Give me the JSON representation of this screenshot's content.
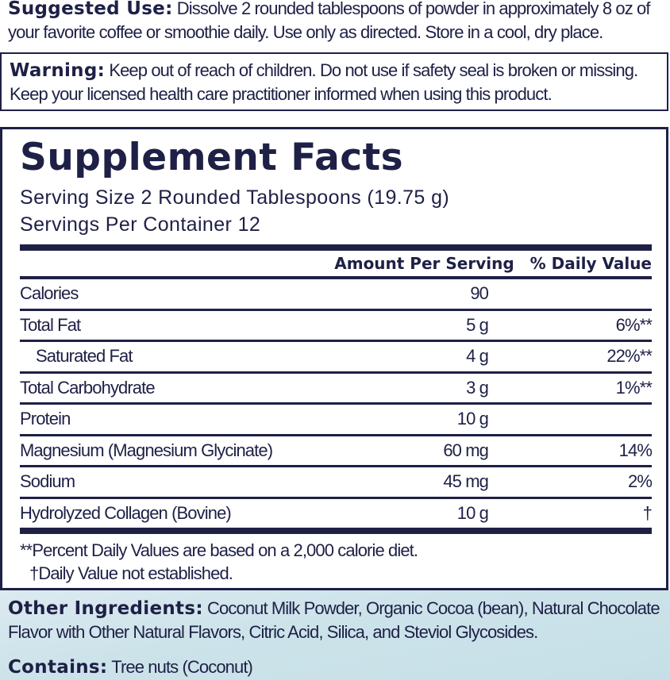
{
  "suggested_use": {
    "label": "Suggested Use:",
    "text": " Dissolve 2 rounded tablespoons of powder in approximately 8 oz of your favorite coffee or smoothie daily. Use only as directed. Store in a cool, dry place."
  },
  "warning": {
    "label": "Warning:",
    "text": " Keep out of reach of children. Do not use if safety seal is broken or missing. Keep your licensed health care practitioner informed when using this product."
  },
  "facts": {
    "title": "Supplement Facts",
    "serving_size": "Serving Size 2 Rounded Tablespoons (19.75 g)",
    "servings_per_container": "Servings Per Container 12",
    "header_amount": "Amount Per Serving",
    "header_dv": "% Daily Value",
    "rows": [
      {
        "name": "Calories",
        "amount": "90",
        "dv": ""
      },
      {
        "name": "Total Fat",
        "amount": "5 g",
        "dv": "6%**"
      },
      {
        "name": "Saturated Fat",
        "amount": "4 g",
        "dv": "22%**"
      },
      {
        "name": "Total Carbohydrate",
        "amount": "3 g",
        "dv": "1%**"
      },
      {
        "name": "Protein",
        "amount": "10 g",
        "dv": ""
      },
      {
        "name": "Magnesium (Magnesium Glycinate)",
        "amount": "60 mg",
        "dv": "14%"
      },
      {
        "name": "Sodium",
        "amount": "45 mg",
        "dv": "2%"
      },
      {
        "name": "Hydrolyzed Collagen (Bovine)",
        "amount": "10 g",
        "dv": "†"
      }
    ],
    "footnote1": "**Percent Daily Values are based on a 2,000 calorie diet.",
    "footnote2": "†Daily Value not established."
  },
  "other_ingredients": {
    "label": "Other Ingredients:",
    "text": " Coconut Milk Powder, Organic Cocoa (bean), Natural Chocolate Flavor with Other Natural Flavors, Citric Acid, Silica, and Steviol Glycosides."
  },
  "contains": {
    "label": "Contains:",
    "text": " Tree nuts (Coconut)"
  },
  "colors": {
    "navy": "#1e2046",
    "bottom_bg": "#cde3ea"
  }
}
